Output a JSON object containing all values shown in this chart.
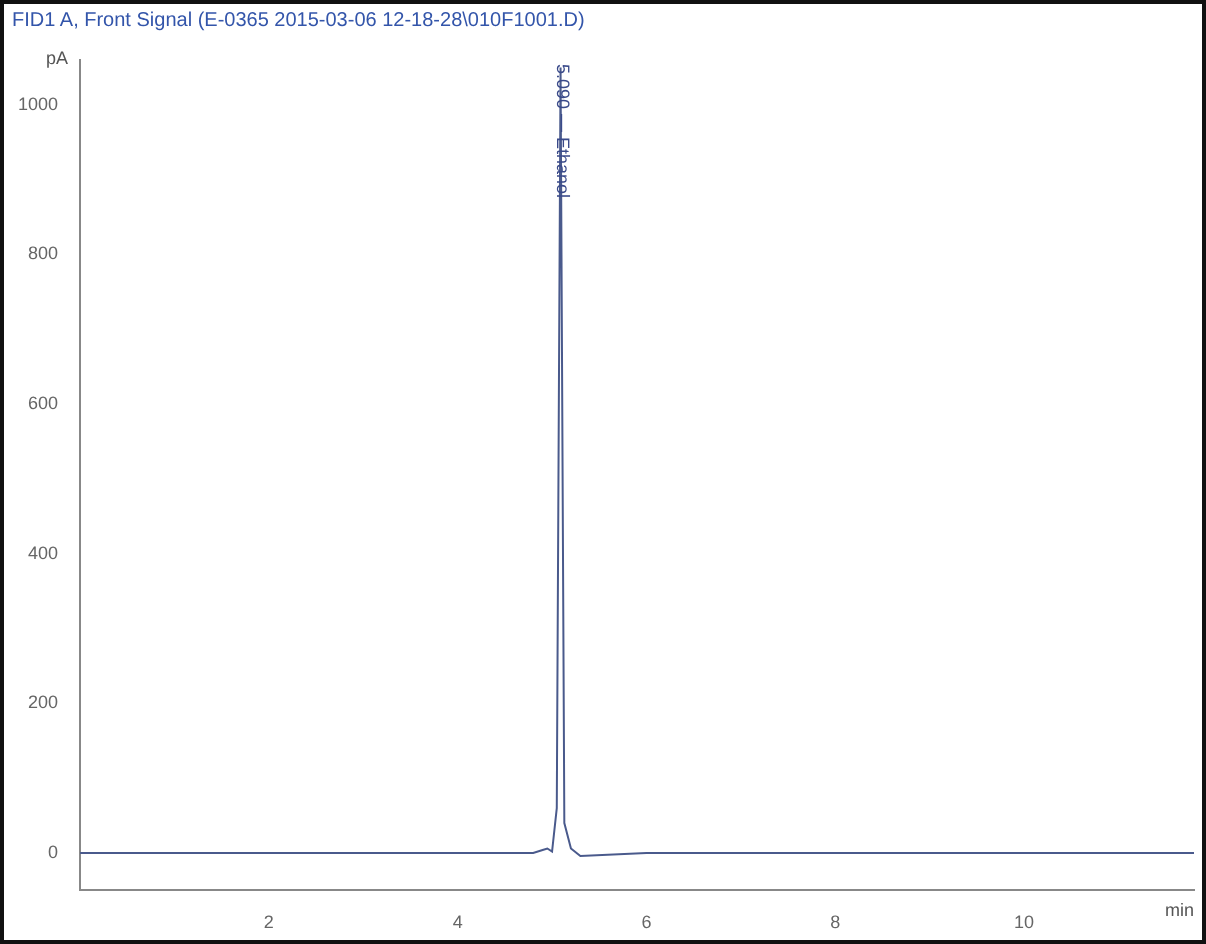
{
  "chart_data": {
    "type": "line",
    "title": "FID1 A, Front Signal (E-0365 2015-03-06 12-18-28\\010F1001.D)",
    "xlabel": "min",
    "ylabel": "pA",
    "x": [
      0,
      1,
      2,
      3,
      4,
      4.8,
      4.9,
      4.95,
      5.0,
      5.05,
      5.09,
      5.13,
      5.2,
      5.3,
      6,
      8,
      10,
      11.8
    ],
    "series": [
      {
        "color": "#4a5a8c",
        "values": [
          0,
          0,
          0,
          0,
          0,
          0,
          4,
          6,
          2,
          60,
          1050,
          40,
          6,
          -4,
          0,
          0,
          0,
          0
        ]
      }
    ],
    "xlim": [
      0,
      11.8
    ],
    "xticks": [
      2,
      4,
      6,
      8,
      10
    ],
    "ylim": [
      -50,
      1060
    ],
    "yticks": [
      0,
      200,
      400,
      600,
      800,
      1000
    ],
    "annotations": [
      {
        "text": "5.090 — Ethanol",
        "x": 5.09,
        "y": 1050
      }
    ],
    "grid": false,
    "legend": false
  }
}
